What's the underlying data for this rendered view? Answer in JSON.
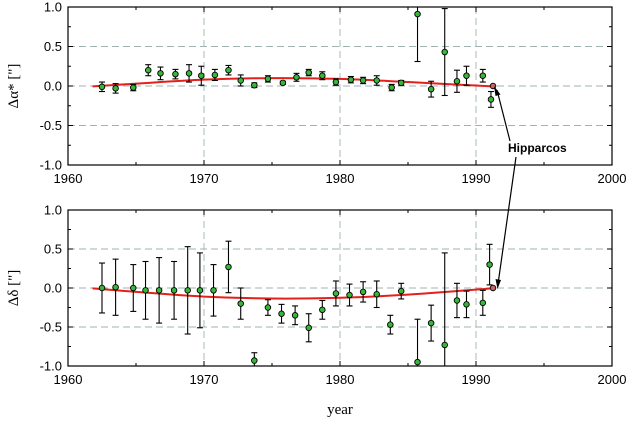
{
  "chart_data": [
    {
      "type": "scatter",
      "ylabel": "Δα* [\"]",
      "xlabel": "",
      "xlim": [
        1960,
        2000
      ],
      "ylim": [
        -1.0,
        1.0
      ],
      "x_ticks": [
        "1960",
        "1970",
        "1980",
        "1990",
        "2000"
      ],
      "y_ticks": [
        "1.0",
        "0.5",
        "0.0",
        "-0.5",
        "-1.0"
      ],
      "grid": true,
      "points": [
        {
          "x": 1962.5,
          "y": -0.01,
          "err": 0.06
        },
        {
          "x": 1963.5,
          "y": -0.03,
          "err": 0.06
        },
        {
          "x": 1964.8,
          "y": -0.02,
          "err": 0.04
        },
        {
          "x": 1965.9,
          "y": 0.2,
          "err": 0.07
        },
        {
          "x": 1966.8,
          "y": 0.16,
          "err": 0.08
        },
        {
          "x": 1967.9,
          "y": 0.15,
          "err": 0.06
        },
        {
          "x": 1968.9,
          "y": 0.16,
          "err": 0.11
        },
        {
          "x": 1969.8,
          "y": 0.13,
          "err": 0.12
        },
        {
          "x": 1970.8,
          "y": 0.14,
          "err": 0.07
        },
        {
          "x": 1971.8,
          "y": 0.2,
          "err": 0.06
        },
        {
          "x": 1972.7,
          "y": 0.07,
          "err": 0.07
        },
        {
          "x": 1973.7,
          "y": 0.01,
          "err": 0.03
        },
        {
          "x": 1974.7,
          "y": 0.09,
          "err": 0.04
        },
        {
          "x": 1975.8,
          "y": 0.04,
          "err": 0.02
        },
        {
          "x": 1976.8,
          "y": 0.11,
          "err": 0.05
        },
        {
          "x": 1977.7,
          "y": 0.17,
          "err": 0.04
        },
        {
          "x": 1978.7,
          "y": 0.13,
          "err": 0.05
        },
        {
          "x": 1979.7,
          "y": 0.05,
          "err": 0.04
        },
        {
          "x": 1980.8,
          "y": 0.08,
          "err": 0.04
        },
        {
          "x": 1981.7,
          "y": 0.07,
          "err": 0.04
        },
        {
          "x": 1982.7,
          "y": 0.07,
          "err": 0.06
        },
        {
          "x": 1983.8,
          "y": -0.02,
          "err": 0.04
        },
        {
          "x": 1984.5,
          "y": 0.04,
          "err": 0.03
        },
        {
          "x": 1985.7,
          "y": 0.91,
          "err": 0.6
        },
        {
          "x": 1986.7,
          "y": -0.04,
          "err": 0.1
        },
        {
          "x": 1987.7,
          "y": 0.43,
          "err": 0.55
        },
        {
          "x": 1988.6,
          "y": 0.06,
          "err": 0.14
        },
        {
          "x": 1989.3,
          "y": 0.13,
          "err": 0.12
        },
        {
          "x": 1990.5,
          "y": 0.13,
          "err": 0.08
        },
        {
          "x": 1991.1,
          "y": -0.17,
          "err": 0.1
        }
      ],
      "hipparcos_point": {
        "x": 1991.25,
        "y": 0.0
      },
      "fit_curve": [
        [
          1961.8,
          -0.005
        ],
        [
          1965,
          0.03
        ],
        [
          1970,
          0.08
        ],
        [
          1975,
          0.1
        ],
        [
          1980,
          0.09
        ],
        [
          1985,
          0.05
        ],
        [
          1991.2,
          -0.005
        ]
      ]
    },
    {
      "type": "scatter",
      "ylabel": "Δδ [\"]",
      "xlabel": "year",
      "xlim": [
        1960,
        2000
      ],
      "ylim": [
        -1.0,
        1.0
      ],
      "x_ticks": [
        "1960",
        "1970",
        "1980",
        "1990",
        "2000"
      ],
      "y_ticks": [
        "1.0",
        "0.5",
        "0.0",
        "-0.5",
        "-1.0"
      ],
      "grid": true,
      "points": [
        {
          "x": 1962.5,
          "y": 0.0,
          "err": 0.32
        },
        {
          "x": 1963.5,
          "y": 0.01,
          "err": 0.36
        },
        {
          "x": 1964.8,
          "y": 0.0,
          "err": 0.3
        },
        {
          "x": 1965.7,
          "y": -0.03,
          "err": 0.37
        },
        {
          "x": 1966.7,
          "y": -0.03,
          "err": 0.42
        },
        {
          "x": 1967.8,
          "y": -0.03,
          "err": 0.37
        },
        {
          "x": 1968.8,
          "y": -0.03,
          "err": 0.56
        },
        {
          "x": 1969.7,
          "y": -0.03,
          "err": 0.48
        },
        {
          "x": 1970.7,
          "y": -0.03,
          "err": 0.33
        },
        {
          "x": 1971.8,
          "y": 0.27,
          "err": 0.33
        },
        {
          "x": 1972.7,
          "y": -0.2,
          "err": 0.2
        },
        {
          "x": 1973.7,
          "y": -0.93,
          "err": 0.1
        },
        {
          "x": 1974.7,
          "y": -0.25,
          "err": 0.1
        },
        {
          "x": 1975.7,
          "y": -0.33,
          "err": 0.12
        },
        {
          "x": 1976.7,
          "y": -0.35,
          "err": 0.12
        },
        {
          "x": 1977.7,
          "y": -0.51,
          "err": 0.18
        },
        {
          "x": 1978.7,
          "y": -0.28,
          "err": 0.12
        },
        {
          "x": 1979.7,
          "y": -0.07,
          "err": 0.16
        },
        {
          "x": 1980.7,
          "y": -0.09,
          "err": 0.14
        },
        {
          "x": 1981.7,
          "y": -0.05,
          "err": 0.13
        },
        {
          "x": 1982.7,
          "y": -0.08,
          "err": 0.17
        },
        {
          "x": 1983.7,
          "y": -0.47,
          "err": 0.12
        },
        {
          "x": 1984.5,
          "y": -0.04,
          "err": 0.1
        },
        {
          "x": 1985.7,
          "y": -0.95,
          "err": 0.55
        },
        {
          "x": 1986.7,
          "y": -0.45,
          "err": 0.23
        },
        {
          "x": 1987.7,
          "y": -0.73,
          "err": 1.18
        },
        {
          "x": 1988.6,
          "y": -0.16,
          "err": 0.22
        },
        {
          "x": 1989.3,
          "y": -0.21,
          "err": 0.17
        },
        {
          "x": 1990.5,
          "y": -0.19,
          "err": 0.16
        },
        {
          "x": 1991.0,
          "y": 0.3,
          "err": 0.26
        }
      ],
      "hipparcos_point": {
        "x": 1991.25,
        "y": 0.0
      },
      "fit_curve": [
        [
          1961.8,
          -0.005
        ],
        [
          1965,
          -0.05
        ],
        [
          1970,
          -0.11
        ],
        [
          1975,
          -0.135
        ],
        [
          1980,
          -0.125
        ],
        [
          1985,
          -0.085
        ],
        [
          1991.2,
          -0.005
        ]
      ]
    }
  ],
  "annotation": {
    "label": "Hipparcos"
  },
  "colors": {
    "fit": "#e3201b",
    "marker_fill": "#35b838",
    "grid": "#9fb3b3",
    "hipparcos_marker": "#c86464"
  }
}
